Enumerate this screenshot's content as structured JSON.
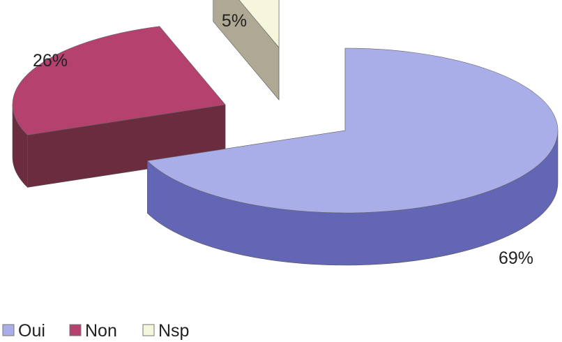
{
  "chart_data": {
    "type": "pie",
    "style": "3d exploded pie",
    "categories": [
      "Oui",
      "Non",
      "Nsp"
    ],
    "values": [
      69,
      26,
      5
    ],
    "data_labels": [
      "69%",
      "26%",
      "5%"
    ],
    "colors": {
      "Oui": {
        "top": "#aaaee8",
        "side": "#6266b4"
      },
      "Non": {
        "top": "#b5416e",
        "side": "#6a2c3e"
      },
      "Nsp": {
        "top": "#f6f6dc",
        "side": "#aea895"
      }
    },
    "legend": {
      "placement": "bottom-left",
      "entries": [
        "Oui",
        "Non",
        "Nsp"
      ]
    }
  }
}
